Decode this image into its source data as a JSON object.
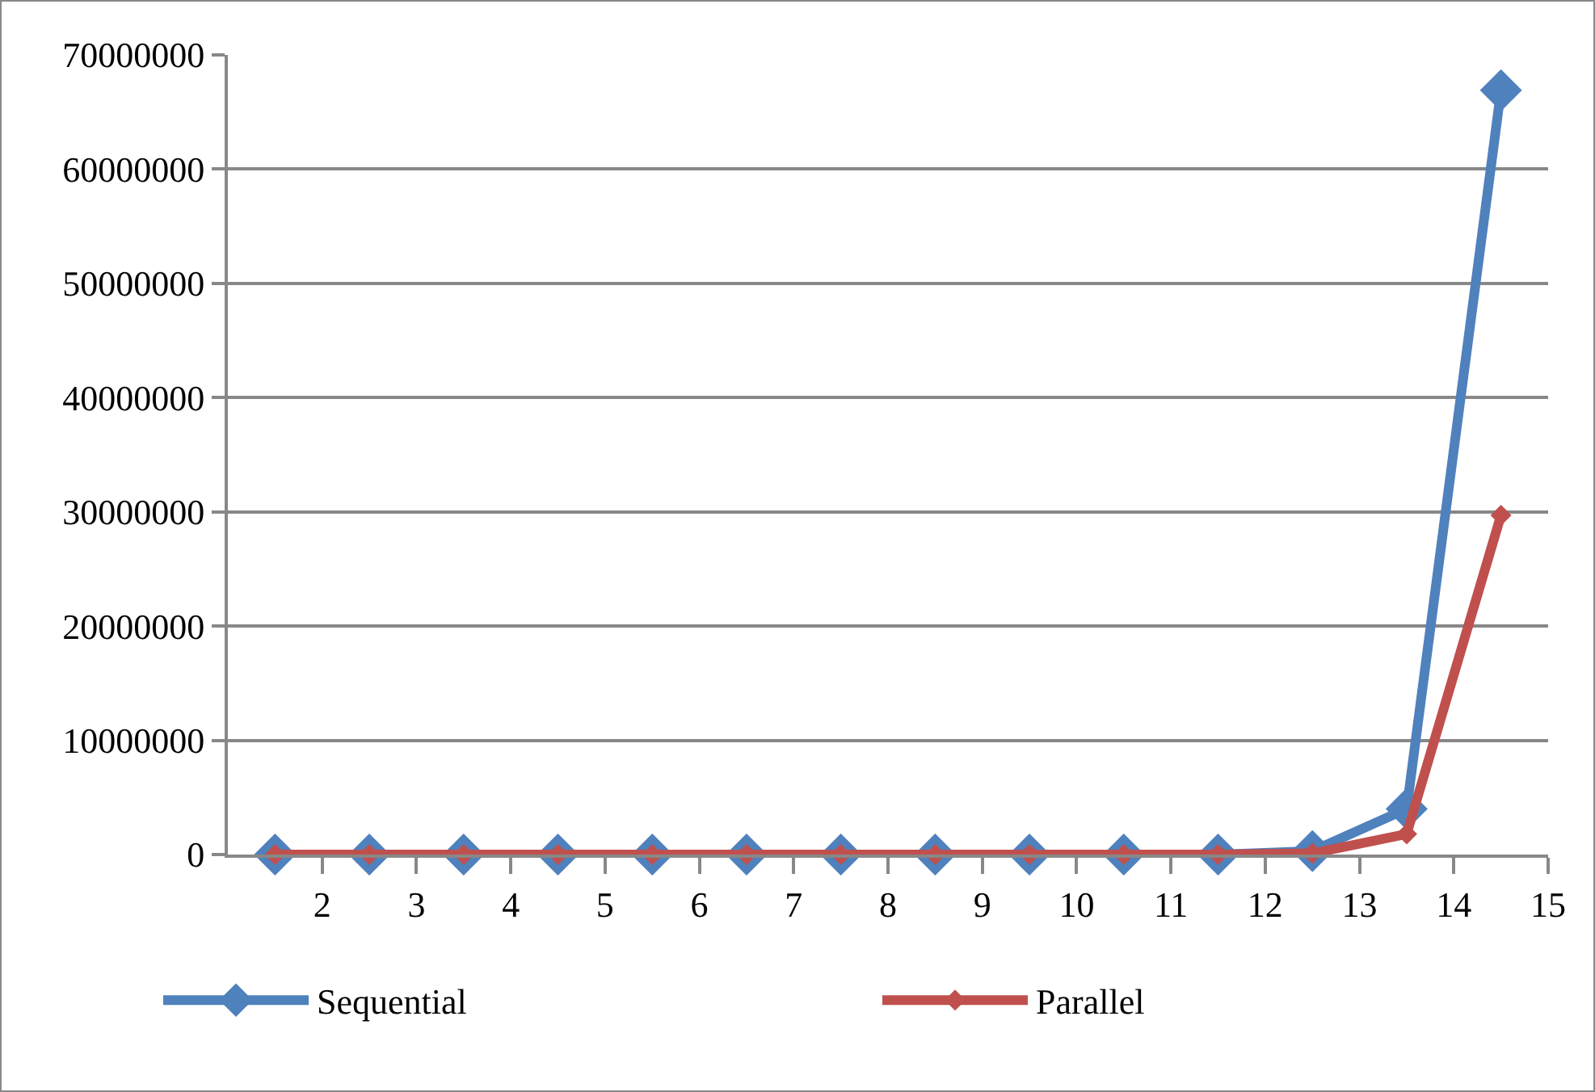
{
  "chart_data": {
    "type": "line",
    "x": [
      1.5,
      2.5,
      3.5,
      4.5,
      5.5,
      6.5,
      7.5,
      8.5,
      9.5,
      10.5,
      11.5,
      12.5,
      13.5,
      14.5
    ],
    "series": [
      {
        "name": "Sequential",
        "color": "#4f81bd",
        "marker": "diamond",
        "values": [
          0,
          0,
          0,
          0,
          0,
          0,
          0,
          0,
          0,
          0,
          0,
          300000,
          4000000,
          66900000
        ]
      },
      {
        "name": "Parallel",
        "color": "#c0504d",
        "marker": "diamond",
        "values": [
          0,
          0,
          0,
          0,
          0,
          0,
          0,
          0,
          0,
          0,
          0,
          100000,
          1800000,
          29700000
        ]
      }
    ],
    "xlim": [
      1,
      15
    ],
    "xticks": [
      2,
      3,
      4,
      5,
      6,
      7,
      8,
      9,
      10,
      11,
      12,
      13,
      14,
      15
    ],
    "ylim": [
      0,
      70000000
    ],
    "yticks": [
      0,
      10000000,
      20000000,
      30000000,
      40000000,
      50000000,
      60000000,
      70000000
    ],
    "grid": "y",
    "legend": "bottom"
  }
}
